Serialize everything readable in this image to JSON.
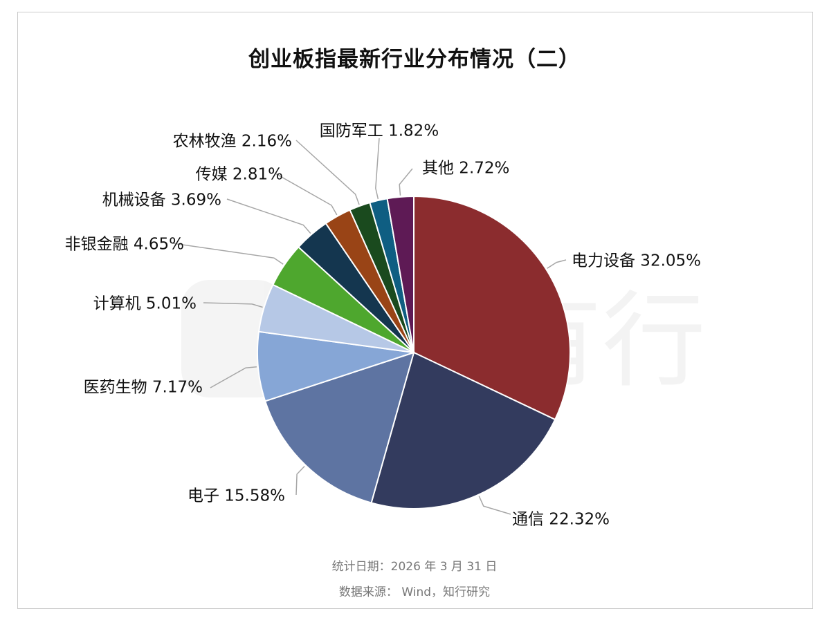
{
  "title": "创业板指最新行业分布情况（二）",
  "footer": {
    "date_line": "统计日期：2026 年 3 月 31 日",
    "source_line": "数据来源： Wind，知行研究"
  },
  "watermark": "有知有行",
  "chart_data": {
    "type": "pie",
    "title": "创业板指最新行业分布情况（二）",
    "unit": "%",
    "slices": [
      {
        "label": "电力设备",
        "value": 32.05,
        "display": "32.05%",
        "color": "#8b2c2e"
      },
      {
        "label": "通信",
        "value": 22.32,
        "display": "22.32%",
        "color": "#333b5e"
      },
      {
        "label": "电子",
        "value": 15.58,
        "display": "15.58%",
        "color": "#5e74a2"
      },
      {
        "label": "医药生物",
        "value": 7.17,
        "display": "7.17%",
        "color": "#86a6d6"
      },
      {
        "label": "计算机",
        "value": 5.01,
        "display": "5.01%",
        "color": "#b6c8e6"
      },
      {
        "label": "非银金融",
        "value": 4.65,
        "display": "4.65%",
        "color": "#4ea72e"
      },
      {
        "label": "机械设备",
        "value": 3.69,
        "display": "3.69%",
        "color": "#14364f"
      },
      {
        "label": "传媒",
        "value": 2.81,
        "display": "2.81%",
        "color": "#994416"
      },
      {
        "label": "农林牧渔",
        "value": 2.16,
        "display": "2.16%",
        "color": "#1a4a1e"
      },
      {
        "label": "国防军工",
        "value": 1.82,
        "display": "1.82%",
        "color": "#0f5e82"
      },
      {
        "label": "其他",
        "value": 2.72,
        "display": "2.72%",
        "color": "#5e1a55"
      }
    ]
  }
}
